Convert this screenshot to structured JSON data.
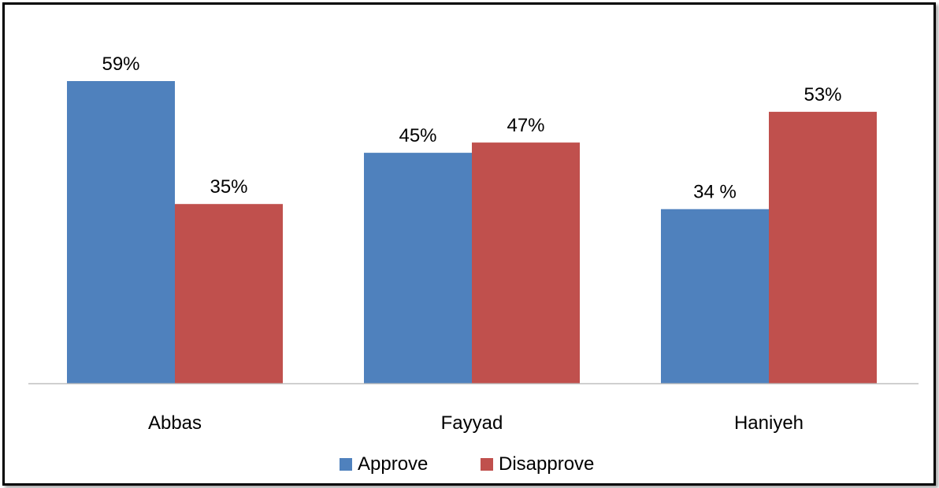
{
  "chart_data": {
    "type": "bar",
    "categories": [
      "Abbas",
      "Fayyad",
      "Haniyeh"
    ],
    "series": [
      {
        "name": "Approve",
        "values": [
          59,
          45,
          34
        ],
        "labels": [
          "59%",
          "45%",
          "34 %"
        ],
        "color": "#4F81BD"
      },
      {
        "name": "Disapprove",
        "values": [
          35,
          47,
          53
        ],
        "labels": [
          "35%",
          "47%",
          "53%"
        ],
        "color": "#C0504D"
      }
    ],
    "title": "",
    "xlabel": "",
    "ylabel": "",
    "ylim": [
      0,
      59
    ],
    "grid": false,
    "legend": "bottom",
    "axis_color": "#BFBFBF"
  }
}
